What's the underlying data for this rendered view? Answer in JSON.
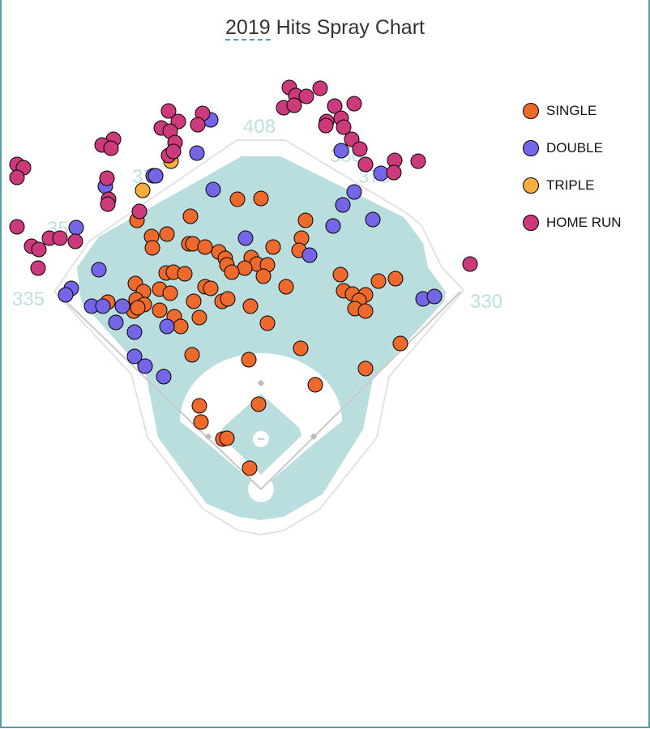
{
  "title": {
    "year": "2019",
    "rest": " Hits Spray Chart"
  },
  "chart_data": {
    "type": "scatter",
    "title": "2019 Hits Spray Chart",
    "units": "feet from home plate (x: toward right field positive, y: toward center field)",
    "fence_distances": {
      "left_line": "335",
      "left_field": "350",
      "left_center": "370",
      "center": "408",
      "right_center_deep": "380",
      "right_center": "375",
      "right_line": "330"
    },
    "legend_placement": "top-right",
    "series": [
      {
        "name": "SINGLE",
        "color": "#ee6a2c",
        "points": [
          [
            -29,
            358
          ],
          [
            0,
            359
          ],
          [
            -87,
            337
          ],
          [
            55,
            332
          ],
          [
            -153,
            332
          ],
          [
            -135,
            312
          ],
          [
            -116,
            315
          ],
          [
            -134,
            298
          ],
          [
            -89,
            303
          ],
          [
            -84,
            303
          ],
          [
            -69,
            299
          ],
          [
            -52,
            293
          ],
          [
            -44,
            285
          ],
          [
            -42,
            277
          ],
          [
            -12,
            286
          ],
          [
            -5,
            278
          ],
          [
            8,
            277
          ],
          [
            -20,
            273
          ],
          [
            3,
            263
          ],
          [
            -36,
            268
          ],
          [
            15,
            299
          ],
          [
            50,
            310
          ],
          [
            47,
            295
          ],
          [
            -155,
            254
          ],
          [
            -145,
            244
          ],
          [
            -154,
            234
          ],
          [
            -144,
            228
          ],
          [
            -157,
            220
          ],
          [
            -152,
            224
          ],
          [
            -117,
            267
          ],
          [
            -108,
            268
          ],
          [
            -94,
            266
          ],
          [
            -125,
            247
          ],
          [
            -112,
            242
          ],
          [
            -125,
            221
          ],
          [
            -107,
            213
          ],
          [
            -99,
            201
          ],
          [
            -83,
            232
          ],
          [
            -76,
            212
          ],
          [
            -69,
            250
          ],
          [
            -62,
            248
          ],
          [
            -48,
            232
          ],
          [
            -41,
            235
          ],
          [
            -13,
            226
          ],
          [
            31,
            250
          ],
          [
            98,
            265
          ],
          [
            102,
            245
          ],
          [
            113,
            241
          ],
          [
            129,
            240
          ],
          [
            145,
            257
          ],
          [
            166,
            260
          ],
          [
            121,
            233
          ],
          [
            116,
            223
          ],
          [
            129,
            220
          ],
          [
            -189,
            231
          ],
          [
            8,
            205
          ],
          [
            -85,
            166
          ],
          [
            -15,
            160
          ],
          [
            49,
            174
          ],
          [
            172,
            180
          ],
          [
            129,
            149
          ],
          [
            67,
            129
          ],
          [
            -76,
            103
          ],
          [
            -74,
            83
          ],
          [
            -3,
            105
          ],
          [
            -47,
            62
          ],
          [
            -42,
            63
          ],
          [
            -14,
            26
          ]
        ]
      },
      {
        "name": "DOUBLE",
        "color": "#7466e6",
        "points": [
          [
            -62,
            456
          ],
          [
            -79,
            415
          ],
          [
            -133,
            387
          ],
          [
            -130,
            387
          ],
          [
            -59,
            370
          ],
          [
            -192,
            374
          ],
          [
            -228,
            323
          ],
          [
            -200,
            271
          ],
          [
            -234,
            248
          ],
          [
            -241,
            240
          ],
          [
            -209,
            226
          ],
          [
            -195,
            226
          ],
          [
            -171,
            226
          ],
          [
            -156,
            194
          ],
          [
            -156,
            164
          ],
          [
            -143,
            152
          ],
          [
            -120,
            139
          ],
          [
            -179,
            206
          ],
          [
            -116,
            201
          ],
          [
            -19,
            310
          ],
          [
            60,
            289
          ],
          [
            99,
            418
          ],
          [
            148,
            390
          ],
          [
            115,
            367
          ],
          [
            101,
            351
          ],
          [
            89,
            325
          ],
          [
            138,
            333
          ],
          [
            200,
            235
          ],
          [
            214,
            238
          ]
        ]
      },
      {
        "name": "TRIPLE",
        "color": "#f5ad3d",
        "points": [
          [
            -111,
            405
          ],
          [
            -146,
            369
          ]
        ]
      },
      {
        "name": "HOME RUN",
        "color": "#cc3a7b",
        "points": [
          [
            35,
            496
          ],
          [
            73,
            495
          ],
          [
            43,
            486
          ],
          [
            56,
            485
          ],
          [
            28,
            471
          ],
          [
            41,
            474
          ],
          [
            91,
            473
          ],
          [
            115,
            476
          ],
          [
            99,
            458
          ],
          [
            81,
            454
          ],
          [
            80,
            449
          ],
          [
            102,
            447
          ],
          [
            112,
            432
          ],
          [
            122,
            420
          ],
          [
            129,
            401
          ],
          [
            165,
            406
          ],
          [
            164,
            391
          ],
          [
            194,
            405
          ],
          [
            258,
            278
          ],
          [
            -114,
            467
          ],
          [
            -72,
            464
          ],
          [
            -102,
            454
          ],
          [
            -123,
            446
          ],
          [
            -112,
            442
          ],
          [
            -78,
            450
          ],
          [
            -106,
            428
          ],
          [
            -114,
            412
          ],
          [
            -108,
            417
          ],
          [
            -182,
            432
          ],
          [
            -196,
            425
          ],
          [
            -185,
            421
          ],
          [
            -190,
            384
          ],
          [
            -188,
            358
          ],
          [
            -189,
            352
          ],
          [
            -150,
            343
          ],
          [
            -301,
            401
          ],
          [
            -293,
            397
          ],
          [
            -301,
            385
          ],
          [
            -301,
            324
          ],
          [
            -261,
            310
          ],
          [
            -248,
            310
          ],
          [
            -283,
            300
          ],
          [
            -274,
            296
          ],
          [
            -229,
            306
          ],
          [
            -275,
            273
          ]
        ]
      }
    ]
  }
}
